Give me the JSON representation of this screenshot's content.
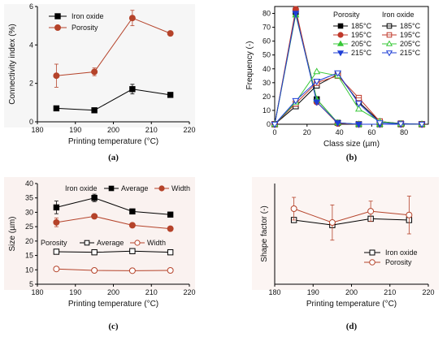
{
  "colors": {
    "black": "#000000",
    "brown": "#b5432a",
    "shade_a": "#e6e6e6",
    "shade_b": "#f2d9d3",
    "shade_d": "#f5e3de",
    "c185": "#000000",
    "c195": "#c0392b",
    "c205": "#37c837",
    "c215": "#1f3fd6"
  },
  "chart_data": [
    {
      "id": "a",
      "panel_label": "(a)",
      "type": "line",
      "xlabel": "Printing temperature (°C)",
      "ylabel": "Connectivity index  (%)",
      "xlim": [
        180,
        220
      ],
      "ylim": [
        0,
        6
      ],
      "xticks": [
        180,
        190,
        200,
        210,
        220
      ],
      "yticks": [
        0,
        2,
        4,
        6
      ],
      "legend_position": "top-left",
      "x": [
        185,
        195,
        205,
        215
      ],
      "series": [
        {
          "name": "Iron oxide",
          "values": [
            0.7,
            0.6,
            1.7,
            1.4
          ],
          "errors": [
            0.1,
            0.1,
            0.25,
            0.1
          ],
          "color": "#000000",
          "marker": "square",
          "filled": true
        },
        {
          "name": "Porosity",
          "values": [
            2.4,
            2.6,
            5.4,
            4.6
          ],
          "errors": [
            0.6,
            0.2,
            0.4,
            0.1
          ],
          "color": "#b5432a",
          "marker": "circle",
          "filled": true
        }
      ]
    },
    {
      "id": "b",
      "panel_label": "(b)",
      "type": "line",
      "xlabel": "Class size (µm)",
      "ylabel": "Frequency  (-)",
      "xlim": [
        0,
        95
      ],
      "ylim": [
        0,
        85
      ],
      "xticks": [
        0,
        20,
        40,
        60,
        80
      ],
      "yticks": [
        0,
        10,
        20,
        30,
        40,
        50,
        60,
        70,
        80
      ],
      "legend_position": "top-right",
      "legend_headers": [
        "Porosity",
        "Iron oxide"
      ],
      "x": [
        0,
        13,
        26,
        39,
        52,
        65,
        78,
        91
      ],
      "series": [
        {
          "name": "185°C",
          "group": "porosity",
          "values": [
            0,
            81,
            18,
            1,
            0,
            0,
            0,
            0
          ],
          "color": "#000000",
          "marker": "square",
          "filled": true
        },
        {
          "name": "195°C",
          "group": "porosity",
          "values": [
            0,
            83,
            16,
            0.5,
            0,
            0,
            0,
            0
          ],
          "color": "#c0392b",
          "marker": "circle",
          "filled": true
        },
        {
          "name": "205°C",
          "group": "porosity",
          "values": [
            0,
            79,
            18,
            1,
            0,
            0,
            0,
            0
          ],
          "color": "#37c837",
          "marker": "triangle-up",
          "filled": true
        },
        {
          "name": "215°C",
          "group": "porosity",
          "values": [
            0,
            80,
            16,
            1,
            0,
            0,
            0,
            0
          ],
          "color": "#1f3fd6",
          "marker": "triangle-down",
          "filled": true
        },
        {
          "name": "185°C",
          "group": "iron_oxide",
          "values": [
            0,
            13,
            28,
            36,
            16,
            2,
            0.5,
            0
          ],
          "color": "#000000",
          "marker": "square-cross",
          "filled": false
        },
        {
          "name": "195°C",
          "group": "iron_oxide",
          "values": [
            0,
            15,
            30,
            35,
            19,
            2,
            0.3,
            0
          ],
          "color": "#c0392b",
          "marker": "square-cross",
          "filled": false
        },
        {
          "name": "205°C",
          "group": "iron_oxide",
          "values": [
            0,
            16,
            38,
            35,
            11,
            2,
            0.3,
            0
          ],
          "color": "#37c837",
          "marker": "triangle-up",
          "filled": false
        },
        {
          "name": "215°C",
          "group": "iron_oxide",
          "values": [
            0,
            17,
            31,
            37,
            15,
            1,
            0.3,
            0
          ],
          "color": "#1f3fd6",
          "marker": "triangle-down",
          "filled": false
        }
      ]
    },
    {
      "id": "c",
      "panel_label": "(c)",
      "type": "line",
      "xlabel": "Printing temperature (°C)",
      "ylabel": "Size  (µm)",
      "xlim": [
        180,
        220
      ],
      "ylim": [
        5,
        40
      ],
      "xticks": [
        180,
        190,
        200,
        210,
        220
      ],
      "yticks": [
        5,
        10,
        15,
        20,
        25,
        30,
        35,
        40
      ],
      "legend_rows": [
        {
          "title": "Iron oxide",
          "items": [
            "Average",
            "Width"
          ]
        },
        {
          "title": "Porosity",
          "items": [
            "Average",
            "Width"
          ]
        }
      ],
      "x": [
        185,
        195,
        205,
        215
      ],
      "series": [
        {
          "name": "Average",
          "group": "Iron oxide",
          "values": [
            31.7,
            35.0,
            30.3,
            29.2
          ],
          "errors": [
            2.2,
            1.3,
            0.4,
            0.5
          ],
          "color": "#000000",
          "marker": "square",
          "filled": true
        },
        {
          "name": "Width",
          "group": "Iron oxide",
          "values": [
            26.5,
            28.6,
            25.5,
            24.3
          ],
          "errors": [
            1.5,
            0.5,
            0.6,
            0.4
          ],
          "color": "#b5432a",
          "marker": "circle",
          "filled": true
        },
        {
          "name": "Average",
          "group": "Porosity",
          "values": [
            16.3,
            16.1,
            16.5,
            16.1
          ],
          "errors": [
            0.5,
            0.4,
            0.5,
            0.4
          ],
          "color": "#000000",
          "marker": "square",
          "filled": false
        },
        {
          "name": "Width",
          "group": "Porosity",
          "values": [
            10.3,
            9.8,
            9.7,
            9.8
          ],
          "errors": [
            0.4,
            0.3,
            0.3,
            0.3
          ],
          "color": "#b5432a",
          "marker": "circle",
          "filled": false
        }
      ]
    },
    {
      "id": "d",
      "panel_label": "(d)",
      "type": "line",
      "xlabel": "Printing temperature (°C)",
      "ylabel": "Shape factor  (-)",
      "xlim": [
        180,
        220
      ],
      "ylim": [
        0,
        0.8
      ],
      "xticks": [
        180,
        190,
        200,
        210,
        220
      ],
      "yticks": [],
      "legend_position": "bottom-right",
      "x": [
        185,
        195,
        205,
        215
      ],
      "series": [
        {
          "name": "Iron oxide",
          "values": [
            0.51,
            0.47,
            0.52,
            0.51
          ],
          "errors": [
            0.02,
            0.02,
            0.02,
            0.02
          ],
          "color": "#000000",
          "marker": "square",
          "filled": false
        },
        {
          "name": "Porosity",
          "values": [
            0.6,
            0.49,
            0.58,
            0.55
          ],
          "errors": [
            0.09,
            0.14,
            0.08,
            0.15
          ],
          "color": "#b5432a",
          "marker": "circle",
          "filled": false
        }
      ]
    }
  ]
}
